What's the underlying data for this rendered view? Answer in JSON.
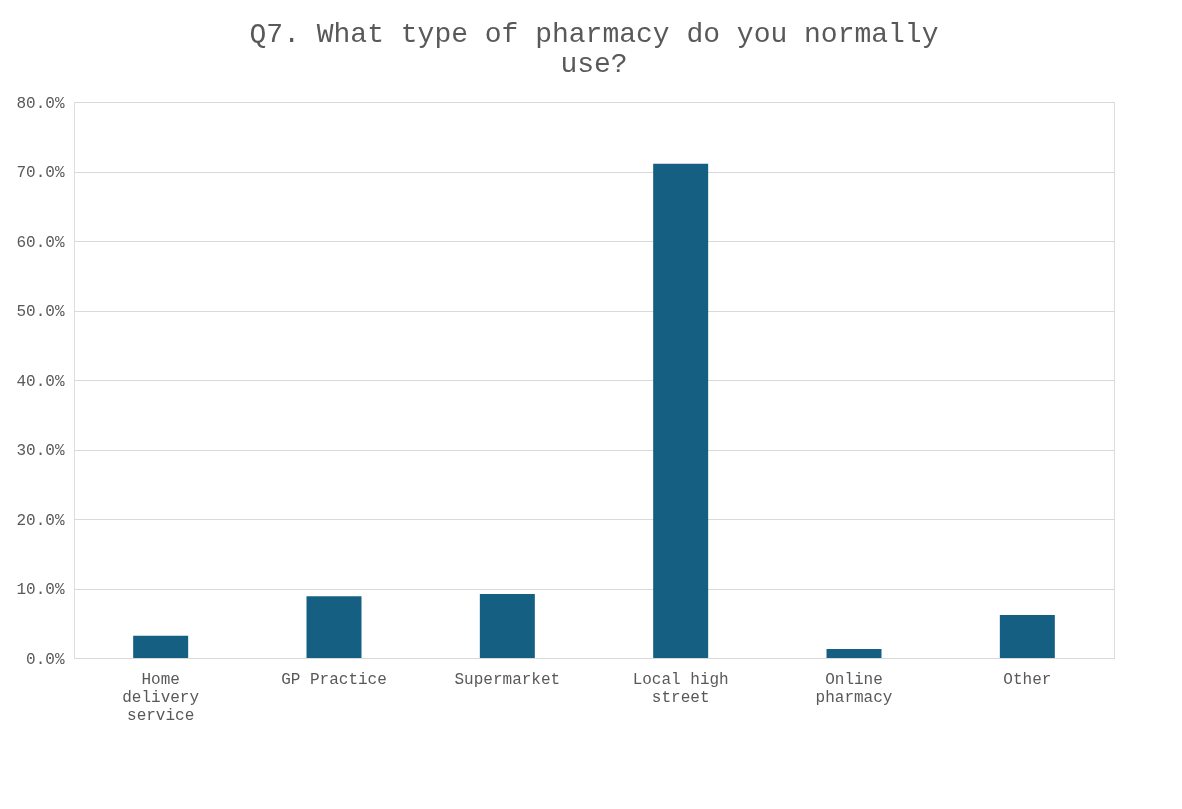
{
  "chart_data": {
    "type": "bar",
    "title": "Q7. What type of pharmacy do you normally use?",
    "categories": [
      "Home delivery service",
      "GP Practice",
      "Supermarket",
      "Local high street",
      "Online pharmacy",
      "Other"
    ],
    "values": [
      3.2,
      8.9,
      9.2,
      71.1,
      1.3,
      6.2
    ],
    "color": "#156082",
    "ylim": [
      0,
      80
    ],
    "yticks": [
      {
        "value": 0,
        "label": "0.0%"
      },
      {
        "value": 10,
        "label": "10.0%"
      },
      {
        "value": 20,
        "label": "20.0%"
      },
      {
        "value": 30,
        "label": "30.0%"
      },
      {
        "value": 40,
        "label": "40.0%"
      },
      {
        "value": 50,
        "label": "50.0%"
      },
      {
        "value": 60,
        "label": "60.0%"
      },
      {
        "value": 70,
        "label": "70.0%"
      },
      {
        "value": 80,
        "label": "80.0%"
      }
    ],
    "grid": "y"
  }
}
